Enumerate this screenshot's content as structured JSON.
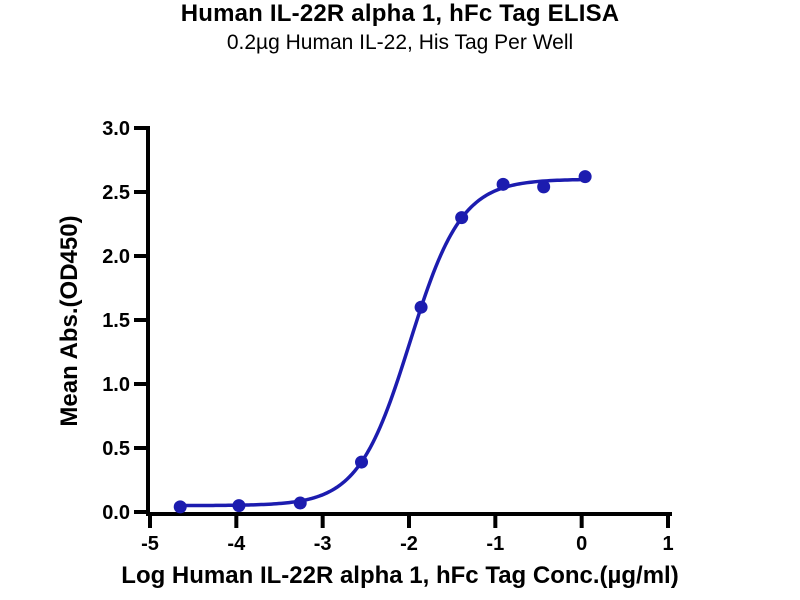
{
  "chart_data": {
    "type": "scatter",
    "title": "Human IL-22R alpha 1, hFc Tag ELISA",
    "subtitle": "0.2µg Human IL-22, His Tag Per Well",
    "xlabel": "Log Human IL-22R alpha 1, hFc Tag Conc.(µg/ml)",
    "ylabel": "Mean Abs.(OD450)",
    "xlim": [
      -5,
      1
    ],
    "ylim": [
      0,
      3
    ],
    "grid": false,
    "legend": null,
    "xticks": [
      {
        "v": -5,
        "label": "-5"
      },
      {
        "v": -4,
        "label": "-4"
      },
      {
        "v": -3,
        "label": "-3"
      },
      {
        "v": -2,
        "label": "-2"
      },
      {
        "v": -1,
        "label": "-1"
      },
      {
        "v": 0,
        "label": "0"
      },
      {
        "v": 1,
        "label": "1"
      }
    ],
    "yticks": [
      {
        "v": 0.0,
        "label": "0.0"
      },
      {
        "v": 0.5,
        "label": "0.5"
      },
      {
        "v": 1.0,
        "label": "1.0"
      },
      {
        "v": 1.5,
        "label": "1.5"
      },
      {
        "v": 2.0,
        "label": "2.0"
      },
      {
        "v": 2.5,
        "label": "2.5"
      },
      {
        "v": 3.0,
        "label": "3.0"
      }
    ],
    "points": {
      "x": [
        -4.65,
        -3.97,
        -3.26,
        -2.55,
        -1.86,
        -1.39,
        -0.91,
        -0.44,
        0.04
      ],
      "y": [
        0.04,
        0.05,
        0.07,
        0.39,
        1.6,
        2.3,
        2.56,
        2.54,
        2.62
      ]
    },
    "fit": {
      "model": "4PL",
      "bottom": 0.05,
      "top": 2.6,
      "logec50": -1.99,
      "hill": 1.45
    },
    "curve_x_range": [
      -4.65,
      0.04
    ],
    "series_color": "#1c1caf",
    "axis_color": "#000000"
  }
}
